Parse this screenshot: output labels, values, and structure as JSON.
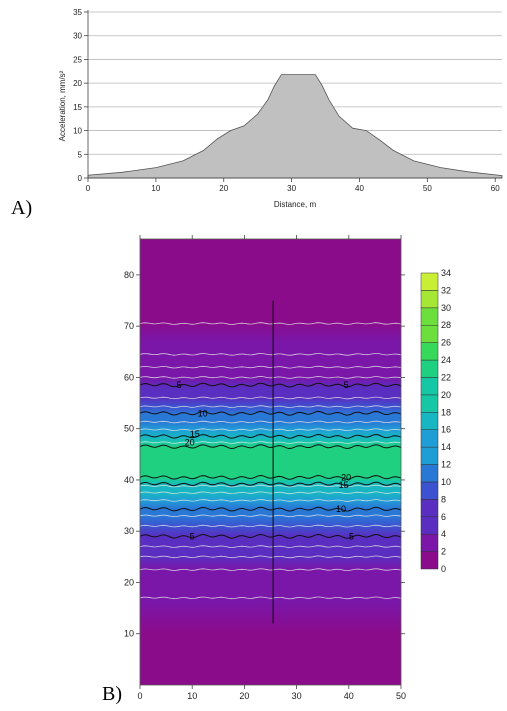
{
  "panels": {
    "a_label": "A)",
    "b_label": "B)"
  },
  "chart_data": [
    {
      "type": "area",
      "title": "",
      "xlabel": "Distance, m",
      "ylabel": "Acceleration, mm/s²",
      "xlim": [
        0,
        61
      ],
      "ylim": [
        0,
        35
      ],
      "xticks": [
        0,
        10,
        20,
        30,
        40,
        50,
        60
      ],
      "yticks": [
        0,
        5,
        10,
        15,
        20,
        25,
        30,
        35
      ],
      "grid": "horizontal",
      "fill_color": "#c0c0c0",
      "series": [
        {
          "x": [
            0,
            5,
            10,
            14,
            17,
            19,
            21,
            23,
            25,
            26.5,
            27.5,
            28.5,
            33.5,
            34.5,
            35.5,
            37,
            39,
            41,
            43,
            45,
            48,
            52,
            56,
            61
          ],
          "values": [
            0.6,
            1.2,
            2.2,
            3.6,
            5.8,
            8.2,
            10.0,
            11.0,
            13.5,
            16.5,
            19.5,
            21.8,
            21.8,
            19.5,
            16.5,
            13.0,
            10.5,
            10.0,
            8.0,
            5.8,
            3.6,
            2.2,
            1.3,
            0.5
          ]
        }
      ]
    },
    {
      "type": "heatmap",
      "title": "",
      "xlabel": "",
      "ylabel": "",
      "xlim": [
        0,
        50
      ],
      "ylim": [
        0,
        87
      ],
      "xticks": [
        0,
        10,
        20,
        30,
        40,
        50
      ],
      "yticks": [
        10,
        20,
        30,
        40,
        50,
        60,
        70,
        80
      ],
      "colorbar_ticks": [
        0,
        2,
        4,
        6,
        8,
        10,
        12,
        14,
        16,
        18,
        20,
        22,
        24,
        26,
        28,
        30,
        32,
        34
      ],
      "colorscale": [
        "#8b0c8b",
        "#7a16a8",
        "#5a2ec0",
        "#3d52d0",
        "#2a78d6",
        "#1f9ed6",
        "#18b6c2",
        "#16c7a6",
        "#1fd080",
        "#37d95a",
        "#6cdf3c",
        "#a6e634",
        "#c9ef35"
      ],
      "profile_y": [
        0,
        10,
        16,
        20,
        22.5,
        25,
        27,
        29,
        31,
        33,
        34.5,
        36,
        37.5,
        38.8,
        39.8,
        40.5,
        46.5,
        47.3,
        48.3,
        49.8,
        51.3,
        52.8,
        54.3,
        56,
        58,
        60,
        62,
        64.5,
        67,
        71,
        77,
        87
      ],
      "profile_value": [
        0.5,
        1.2,
        2,
        3,
        4,
        5,
        6,
        7,
        8,
        10,
        12,
        14,
        16,
        18,
        20,
        23,
        23,
        20,
        18,
        14,
        12,
        10,
        8,
        7,
        5,
        4,
        3,
        2,
        1.5,
        1,
        0.5,
        0.3
      ],
      "contour_labels": [
        {
          "level": "5",
          "x": 7.5,
          "y": 58.5
        },
        {
          "level": "5",
          "x": 39.5,
          "y": 58.5
        },
        {
          "level": "10",
          "x": 12,
          "y": 53
        },
        {
          "level": "15",
          "x": 10.5,
          "y": 49
        },
        {
          "level": "20",
          "x": 9.5,
          "y": 47.3
        },
        {
          "level": "20",
          "x": 39.5,
          "y": 40.5
        },
        {
          "level": "15",
          "x": 39,
          "y": 39
        },
        {
          "level": "10",
          "x": 38.5,
          "y": 34.3
        },
        {
          "level": "5",
          "x": 10,
          "y": 29
        },
        {
          "level": "5",
          "x": 40.5,
          "y": 29
        }
      ],
      "line_x": 25.5,
      "line_y": [
        12,
        75
      ]
    }
  ]
}
